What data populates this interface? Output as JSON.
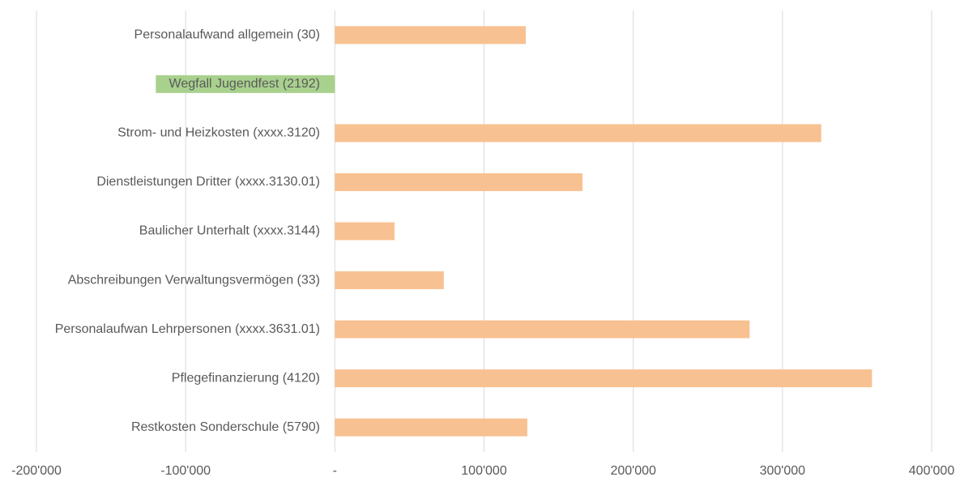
{
  "chart_data": {
    "type": "bar",
    "orientation": "horizontal",
    "categories": [
      "Personalaufwand allgemein (30)",
      "Wegfall Jugendfest (2192)",
      "Strom- und Heizkosten (xxxx.3120)",
      "Dienstleistungen Dritter (xxxx.3130.01)",
      "Baulicher Unterhalt (xxxx.3144)",
      "Abschreibungen Verwaltungsvermögen (33)",
      "Personalaufwan Lehrpersonen (xxxx.3631.01)",
      "Pflegefinanzierung (4120)",
      "Restkosten Sonderschule (5790)"
    ],
    "values": [
      128000,
      -120000,
      326000,
      166000,
      40000,
      73000,
      278000,
      360000,
      129000
    ],
    "colors": [
      "#f8c191",
      "#a9d18e",
      "#f8c191",
      "#f8c191",
      "#f8c191",
      "#f8c191",
      "#f8c191",
      "#f8c191",
      "#f8c191"
    ],
    "xlim": [
      -200000,
      400000
    ],
    "xticks": [
      {
        "value": -200000,
        "label": "-200'000"
      },
      {
        "value": -100000,
        "label": "-100'000"
      },
      {
        "value": 0,
        "label": "-"
      },
      {
        "value": 100000,
        "label": "100'000"
      },
      {
        "value": 200000,
        "label": "200'000"
      },
      {
        "value": 300000,
        "label": "300'000"
      },
      {
        "value": 400000,
        "label": "400'000"
      }
    ],
    "grid": true
  }
}
